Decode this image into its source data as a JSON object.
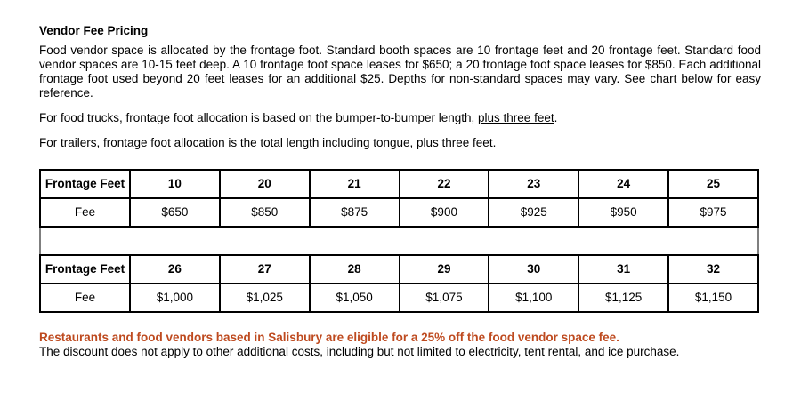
{
  "page": {
    "title": "Vendor Fee Pricing",
    "intro": "Food vendor space is allocated by the frontage foot. Standard booth spaces are 10 frontage feet and 20 frontage feet. Standard food vendor spaces are 10-15 feet deep. A 10 frontage foot space leases for $650; a 20 frontage foot space leases for $850. Each additional frontage foot used beyond 20 feet leases for an additional $25. Depths for non-standard spaces may vary. See chart below for easy reference.",
    "accent_color": "#be4a1f"
  },
  "notes": [
    {
      "prefix": "For food trucks, frontage foot allocation is based on the bumper-to-bumper length, ",
      "underlined": "plus three feet",
      "suffix": "."
    },
    {
      "prefix": "For trailers, frontage foot allocation is the total length including tongue, ",
      "underlined": "plus three feet",
      "suffix": "."
    }
  ],
  "tables": [
    {
      "row_headers": [
        "Frontage Feet",
        "Fee"
      ],
      "columns": [
        "10",
        "20",
        "21",
        "22",
        "23",
        "24",
        "25"
      ],
      "fees": [
        "$650",
        "$850",
        "$875",
        "$900",
        "$925",
        "$950",
        "$975"
      ]
    },
    {
      "row_headers": [
        "Frontage Feet",
        "Fee"
      ],
      "columns": [
        "26",
        "27",
        "28",
        "29",
        "30",
        "31",
        "32"
      ],
      "fees": [
        "$1,000",
        "$1,025",
        "$1,050",
        "$1,075",
        "$1,100",
        "$1,125",
        "$1,150"
      ]
    }
  ],
  "discount": {
    "highlight": "Restaurants and food vendors based in Salisbury are eligible for a 25% off the food vendor space fee.",
    "note": "The discount does not apply to other additional costs, including but not limited to electricity, tent rental, and ice purchase."
  }
}
